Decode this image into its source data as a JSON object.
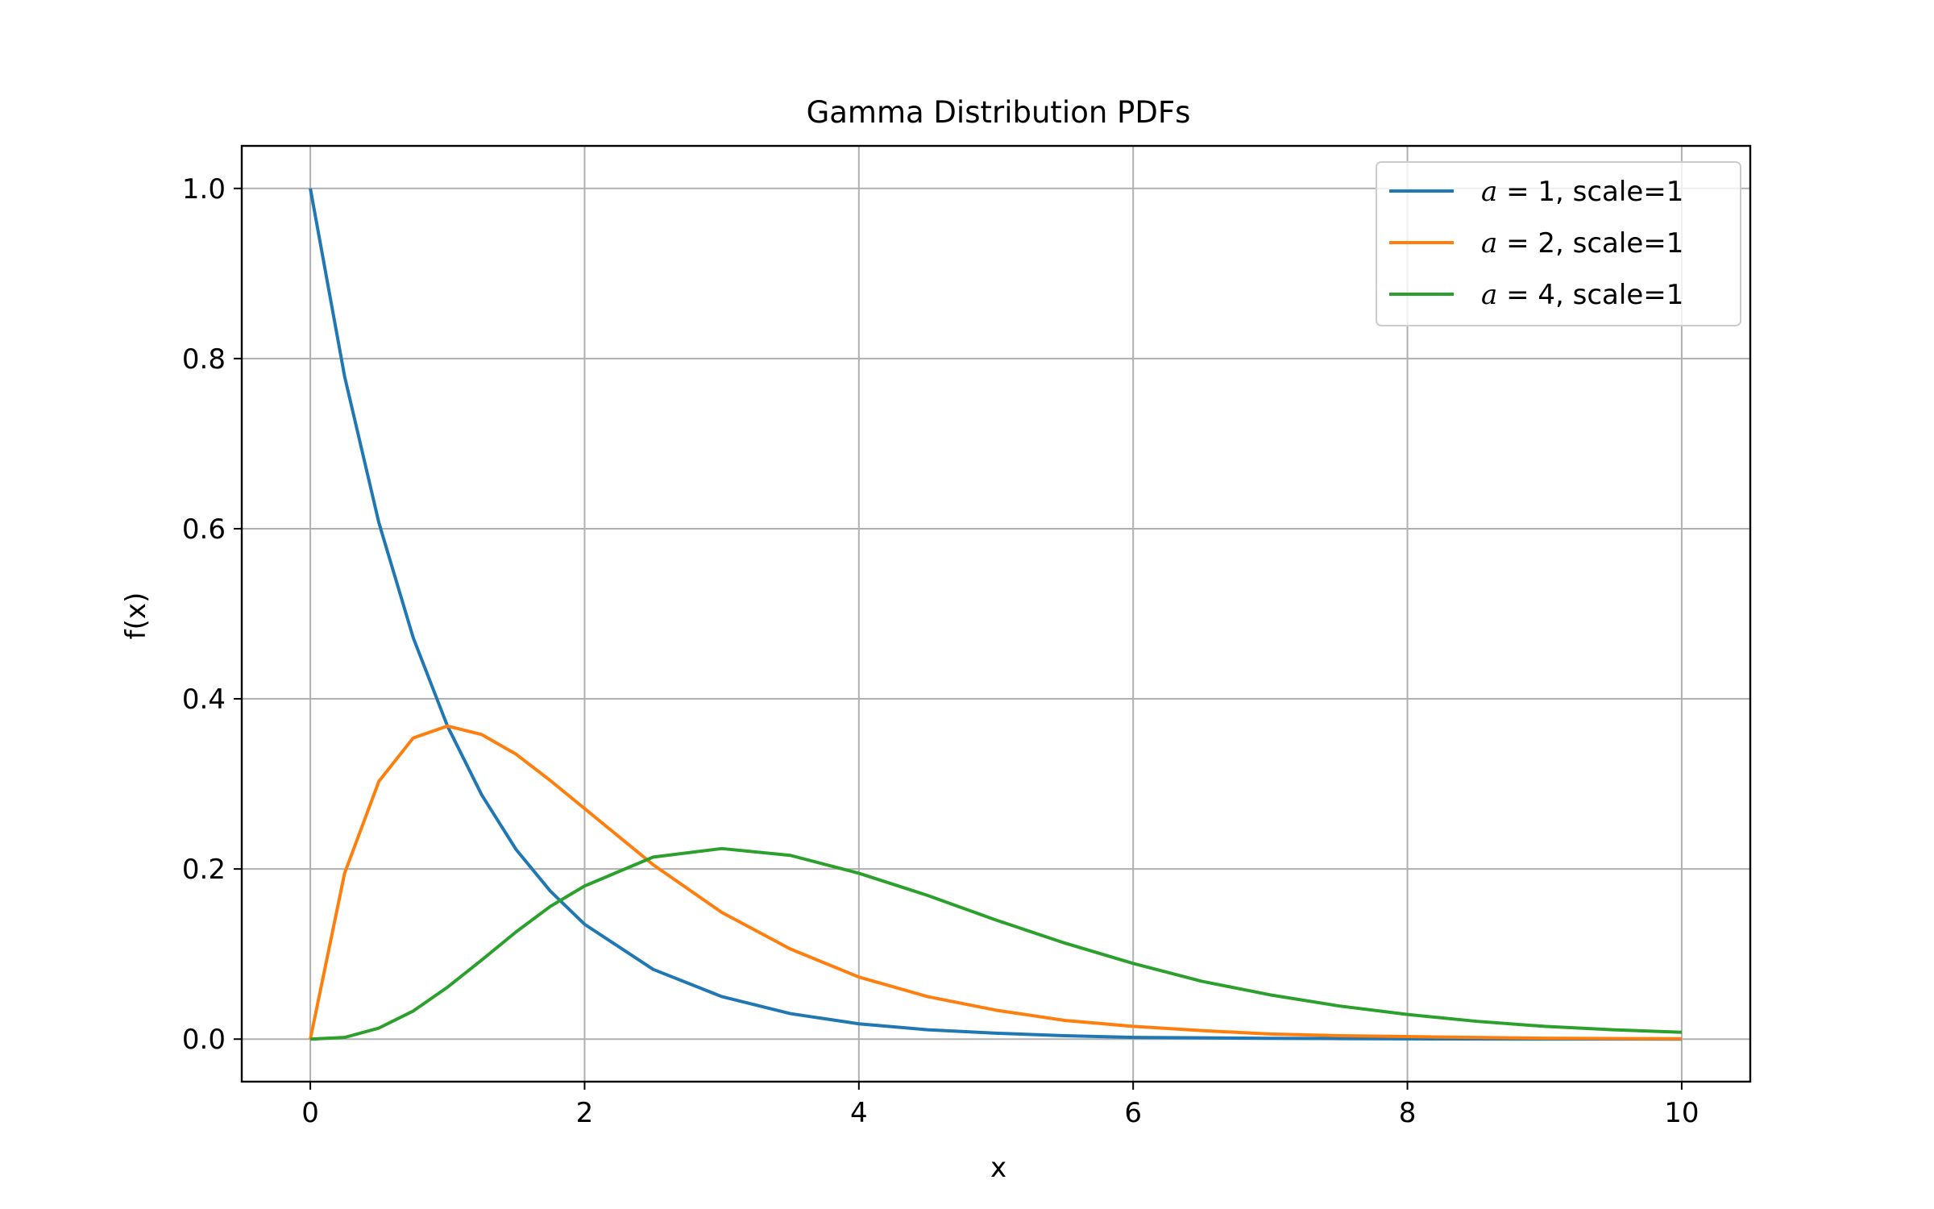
{
  "chart_data": {
    "type": "line",
    "title": "Gamma Distribution PDFs",
    "xlabel": "x",
    "ylabel": "f(x)",
    "xlim": [
      -0.5,
      10.5
    ],
    "ylim": [
      -0.05,
      1.05
    ],
    "xticks": [
      0,
      2,
      4,
      6,
      8,
      10
    ],
    "xtick_labels": [
      "0",
      "2",
      "4",
      "6",
      "8",
      "10"
    ],
    "yticks": [
      0.0,
      0.2,
      0.4,
      0.6,
      0.8,
      1.0
    ],
    "ytick_labels": [
      "0.0",
      "0.2",
      "0.4",
      "0.6",
      "0.8",
      "1.0"
    ],
    "grid": true,
    "legend_position": "top-right",
    "series": [
      {
        "name": "a = 1, scale=1",
        "legend_var": "a",
        "legend_rest": " = 1, scale=1",
        "color": "#1f77b4",
        "x": [
          0,
          0.25,
          0.5,
          0.75,
          1,
          1.25,
          1.5,
          1.75,
          2,
          2.5,
          3,
          3.5,
          4,
          4.5,
          5,
          5.5,
          6,
          6.5,
          7,
          7.5,
          8,
          8.5,
          9,
          9.5,
          10
        ],
        "y": [
          1.0,
          0.779,
          0.607,
          0.472,
          0.368,
          0.287,
          0.223,
          0.174,
          0.135,
          0.082,
          0.05,
          0.03,
          0.018,
          0.011,
          0.007,
          0.004,
          0.002,
          0.0015,
          0.0009,
          0.0006,
          0.0003,
          0.0002,
          0.0001,
          0.0001,
          0.0
        ]
      },
      {
        "name": "a = 2, scale=1",
        "legend_var": "a",
        "legend_rest": " = 2, scale=1",
        "color": "#ff7f0e",
        "x": [
          0,
          0.25,
          0.5,
          0.75,
          1,
          1.25,
          1.5,
          1.75,
          2,
          2.5,
          3,
          3.5,
          4,
          4.5,
          5,
          5.5,
          6,
          6.5,
          7,
          7.5,
          8,
          8.5,
          9,
          9.5,
          10
        ],
        "y": [
          0.0,
          0.195,
          0.303,
          0.354,
          0.368,
          0.358,
          0.335,
          0.304,
          0.271,
          0.205,
          0.149,
          0.106,
          0.073,
          0.05,
          0.034,
          0.022,
          0.015,
          0.01,
          0.006,
          0.004,
          0.003,
          0.002,
          0.001,
          0.0007,
          0.0005
        ]
      },
      {
        "name": "a = 4, scale=1",
        "legend_var": "a",
        "legend_rest": " = 4, scale=1",
        "color": "#2ca02c",
        "x": [
          0,
          0.25,
          0.5,
          0.75,
          1,
          1.25,
          1.5,
          1.75,
          2,
          2.5,
          3,
          3.5,
          4,
          4.5,
          5,
          5.5,
          6,
          6.5,
          7,
          7.5,
          8,
          8.5,
          9,
          9.5,
          10
        ],
        "y": [
          0.0,
          0.002,
          0.013,
          0.033,
          0.061,
          0.093,
          0.126,
          0.156,
          0.18,
          0.214,
          0.224,
          0.216,
          0.195,
          0.169,
          0.14,
          0.113,
          0.089,
          0.068,
          0.052,
          0.039,
          0.029,
          0.021,
          0.015,
          0.011,
          0.008
        ]
      }
    ]
  }
}
